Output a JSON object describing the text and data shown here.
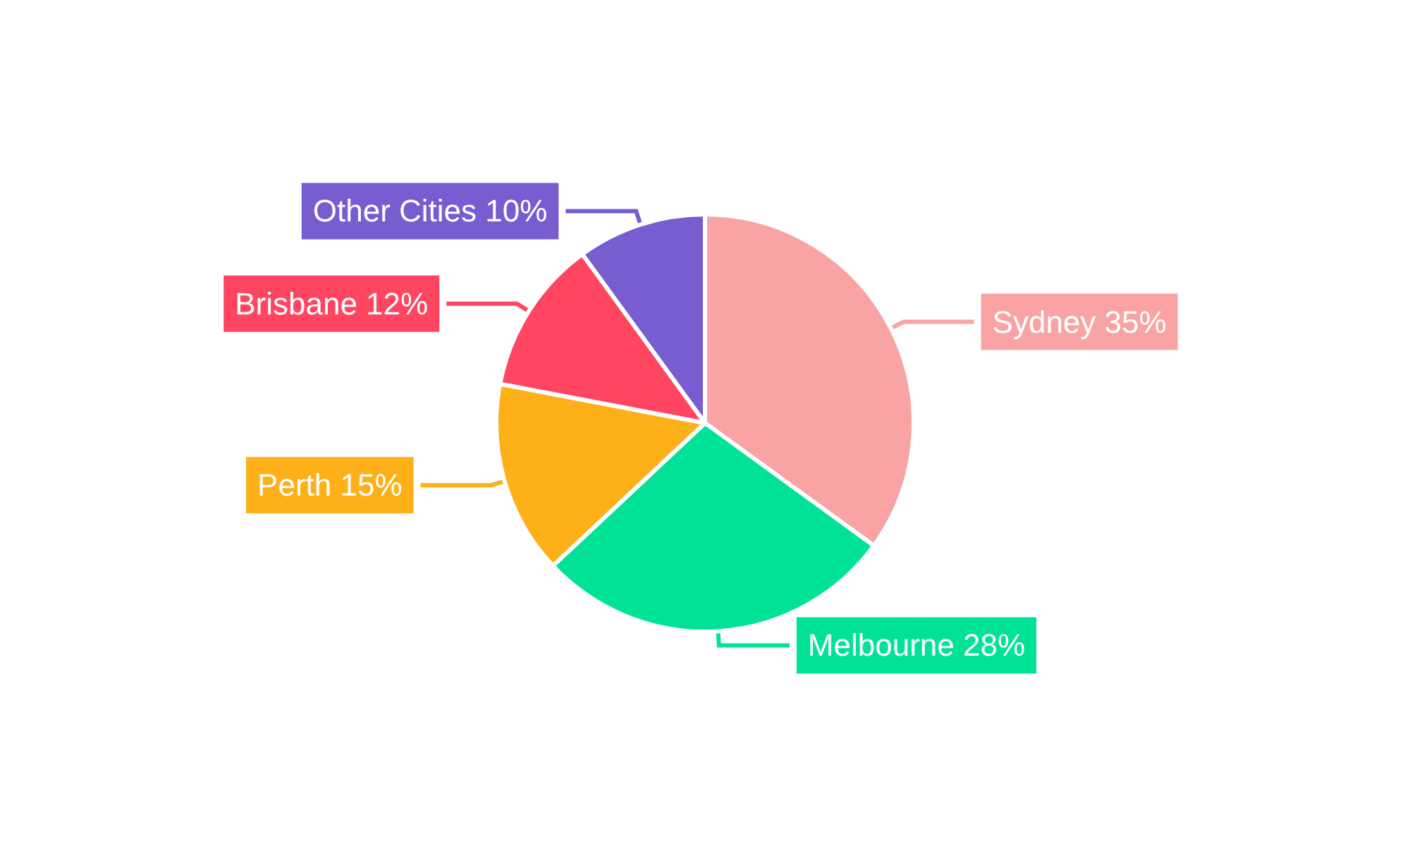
{
  "chart_data": {
    "type": "pie",
    "categories": [
      "Sydney",
      "Melbourne",
      "Perth",
      "Brisbane",
      "Other Cities"
    ],
    "values": [
      35,
      28,
      15,
      12,
      10
    ],
    "value_labels": [
      "35%",
      "28%",
      "15%",
      "12%",
      "10%"
    ],
    "colors": [
      "#f9a3a4",
      "#00e396",
      "#feb019",
      "#ff4560",
      "#775dd0"
    ],
    "legend": false
  }
}
